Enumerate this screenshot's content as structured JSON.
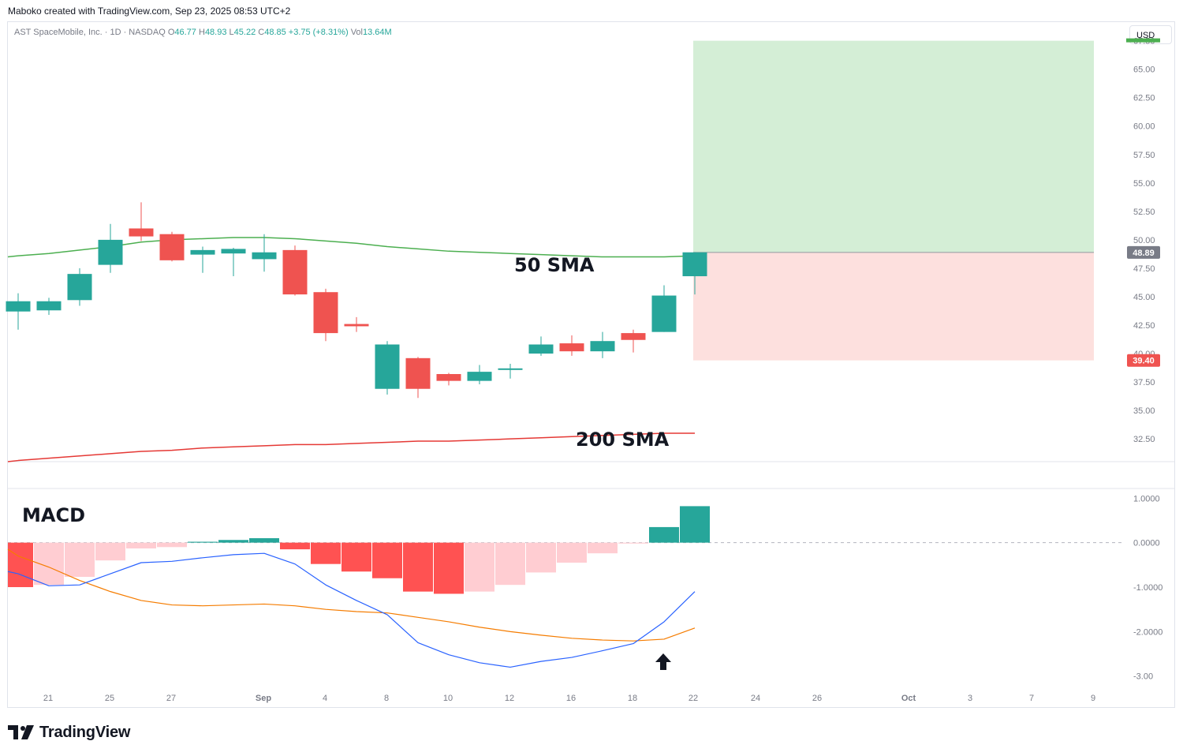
{
  "header": {
    "author_line": "Maboko created with TradingView.com, Sep 23, 2025 08:53 UTC+2",
    "symbol_desc": "AST SpaceMobile, Inc. · 1D · NASDAQ",
    "o_label": "O",
    "o_value": "46.77",
    "h_label": "H",
    "h_value": "48.93",
    "l_label": "L",
    "l_value": "45.22",
    "c_label": "C",
    "c_value": "48.85",
    "change": "+3.75 (+8.31%)",
    "vol_label": "Vol",
    "vol_value": "13.64M",
    "currency": "USD"
  },
  "brand": {
    "name": "TradingView",
    "logo_icon": "tradingview-logo-icon"
  },
  "colors": {
    "up": "#26a69a",
    "down": "#ef5350",
    "sma50": "#4caf50",
    "sma200": "#e53935",
    "macd_line": "#2962ff",
    "signal_line": "#f57c00",
    "hist_up_strong": "#26a69a",
    "hist_up_weak": "#b2dfdb",
    "hist_down_strong": "#ff5252",
    "hist_down_weak": "#ffcdd2",
    "target_zone": "#d4eed6",
    "stop_zone": "#fde0de"
  },
  "chart_data": [
    {
      "type": "candlestick",
      "title": "AST SpaceMobile, Inc. · 1D · NASDAQ",
      "y_ticks": [
        "32.50",
        "35.00",
        "37.50",
        "40.00",
        "42.50",
        "45.00",
        "47.50",
        "50.00",
        "52.50",
        "55.00",
        "57.50",
        "60.00",
        "62.50",
        "65.00",
        "67.50"
      ],
      "x_ticks": [
        "21",
        "25",
        "27",
        "Sep",
        "4",
        "8",
        "10",
        "12",
        "16",
        "18",
        "22",
        "24",
        "26",
        "Oct",
        "3",
        "7",
        "9"
      ],
      "ylim": [
        30.5,
        69.0
      ],
      "candles": [
        {
          "o": 43.7,
          "h": 45.3,
          "l": 42.1,
          "c": 44.6
        },
        {
          "o": 43.8,
          "h": 44.9,
          "l": 43.4,
          "c": 44.6
        },
        {
          "o": 44.7,
          "h": 47.5,
          "l": 44.2,
          "c": 47.0
        },
        {
          "o": 47.8,
          "h": 51.4,
          "l": 47.1,
          "c": 50.0
        },
        {
          "o": 51.0,
          "h": 53.3,
          "l": 49.9,
          "c": 50.3
        },
        {
          "o": 50.5,
          "h": 50.7,
          "l": 48.1,
          "c": 48.2
        },
        {
          "o": 48.7,
          "h": 49.4,
          "l": 47.1,
          "c": 49.1
        },
        {
          "o": 48.8,
          "h": 49.3,
          "l": 46.8,
          "c": 49.2
        },
        {
          "o": 48.3,
          "h": 50.5,
          "l": 47.2,
          "c": 48.9
        },
        {
          "o": 49.1,
          "h": 49.5,
          "l": 45.1,
          "c": 45.2
        },
        {
          "o": 45.4,
          "h": 45.7,
          "l": 41.1,
          "c": 41.8
        },
        {
          "o": 42.6,
          "h": 43.2,
          "l": 41.9,
          "c": 42.4
        },
        {
          "o": 36.9,
          "h": 41.1,
          "l": 36.4,
          "c": 40.8
        },
        {
          "o": 39.6,
          "h": 39.7,
          "l": 36.1,
          "c": 36.9
        },
        {
          "o": 38.2,
          "h": 38.3,
          "l": 37.2,
          "c": 37.6
        },
        {
          "o": 37.6,
          "h": 39.0,
          "l": 37.3,
          "c": 38.4
        },
        {
          "o": 38.6,
          "h": 39.1,
          "l": 37.8,
          "c": 38.7
        },
        {
          "o": 40.0,
          "h": 41.5,
          "l": 39.8,
          "c": 40.8
        },
        {
          "o": 40.9,
          "h": 41.6,
          "l": 39.8,
          "c": 40.2
        },
        {
          "o": 40.2,
          "h": 41.9,
          "l": 39.6,
          "c": 41.1
        },
        {
          "o": 41.8,
          "h": 42.1,
          "l": 40.1,
          "c": 41.2
        },
        {
          "o": 41.9,
          "h": 46.0,
          "l": 41.9,
          "c": 45.1
        },
        {
          "o": 46.8,
          "h": 48.9,
          "l": 45.2,
          "c": 48.9
        }
      ],
      "sma50": [
        48.6,
        48.8,
        49.1,
        49.4,
        49.8,
        50.0,
        50.1,
        50.2,
        50.2,
        50.1,
        49.9,
        49.7,
        49.4,
        49.2,
        49.0,
        48.9,
        48.8,
        48.7,
        48.6,
        48.5,
        48.5,
        48.5,
        48.6
      ],
      "sma200": [
        30.6,
        30.8,
        31.0,
        31.2,
        31.4,
        31.5,
        31.7,
        31.8,
        31.9,
        32.0,
        32.0,
        32.1,
        32.2,
        32.3,
        32.3,
        32.4,
        32.5,
        32.6,
        32.7,
        32.8,
        32.9,
        33.0,
        33.0
      ],
      "annotations": [
        "50 SMA",
        "200 SMA"
      ],
      "position": {
        "entry": "48.89",
        "stop": "39.40",
        "target": "67.50"
      },
      "price_labels": {
        "last": "48.89",
        "stop": "39.40"
      }
    },
    {
      "type": "bar",
      "title": "MACD",
      "y_ticks": [
        "1.0000",
        "0.0000",
        "-1.0000",
        "-2.0000",
        "-3.00"
      ],
      "ylim": [
        -3.2,
        1.2
      ],
      "histogram": [
        -1.0,
        -0.95,
        -0.77,
        -0.4,
        -0.13,
        -0.1,
        0.02,
        0.06,
        0.1,
        -0.15,
        -0.48,
        -0.65,
        -0.8,
        -1.1,
        -1.15,
        -1.1,
        -0.95,
        -0.67,
        -0.45,
        -0.24,
        -0.02,
        0.35,
        0.82
      ],
      "macd": [
        -0.7,
        -0.97,
        -0.95,
        -0.7,
        -0.45,
        -0.42,
        -0.34,
        -0.27,
        -0.24,
        -0.48,
        -0.95,
        -1.3,
        -1.62,
        -2.25,
        -2.52,
        -2.7,
        -2.8,
        -2.67,
        -2.58,
        -2.43,
        -2.27,
        -1.78,
        -1.1
      ],
      "signal": [
        -0.3,
        -0.55,
        -0.85,
        -1.1,
        -1.3,
        -1.4,
        -1.42,
        -1.4,
        -1.38,
        -1.42,
        -1.5,
        -1.55,
        -1.58,
        -1.68,
        -1.78,
        -1.9,
        -2.0,
        -2.08,
        -2.15,
        -2.19,
        -2.21,
        -2.17,
        -1.92
      ]
    }
  ]
}
